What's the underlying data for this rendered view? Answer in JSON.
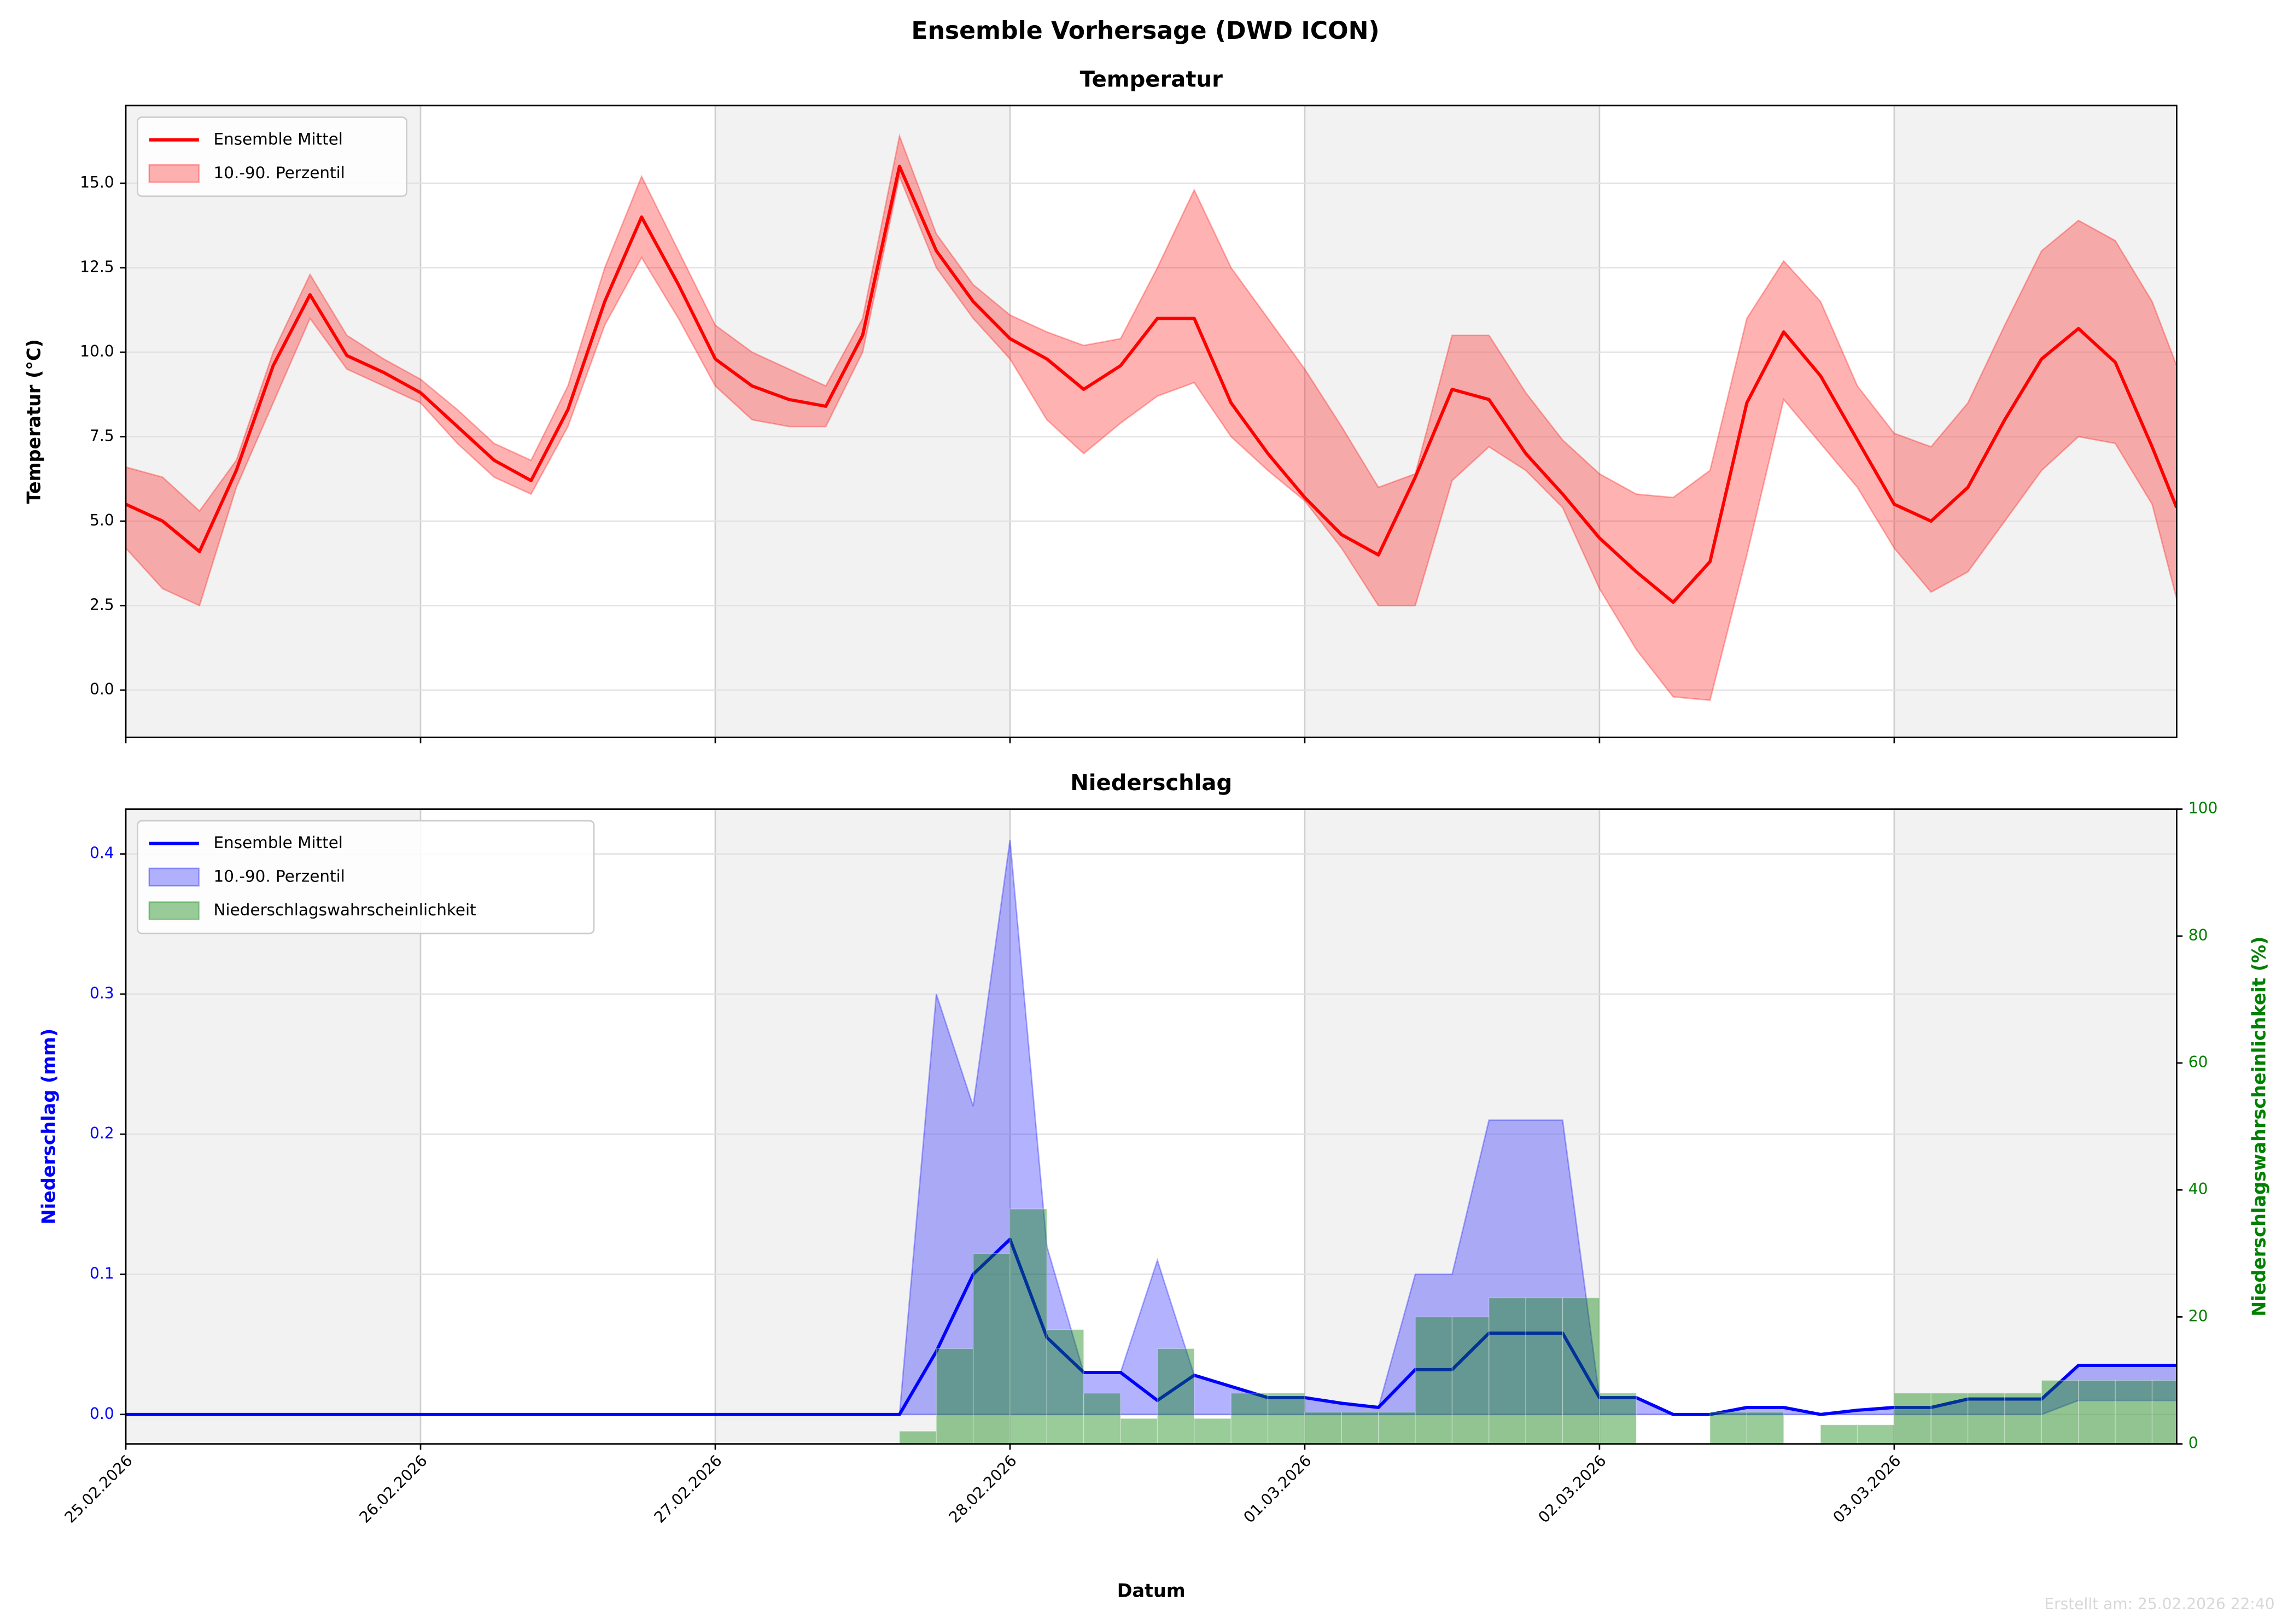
{
  "title": "Ensemble Vorhersage (DWD ICON)",
  "footer": "Erstellt am: 25.02.2026 22:40",
  "chart_data": [
    {
      "type": "line",
      "title": "Temperatur",
      "ylabel": "Temperatur (°C)",
      "x": [
        0,
        3,
        6,
        9,
        12,
        15,
        18,
        21,
        24,
        27,
        30,
        33,
        36,
        39,
        42,
        45,
        48,
        51,
        54,
        57,
        60,
        63,
        66,
        69,
        72,
        75,
        78,
        81,
        84,
        87,
        90,
        93,
        96,
        99,
        102,
        105,
        108,
        111,
        114,
        117,
        120,
        123,
        126,
        129,
        132,
        135,
        138,
        141,
        144,
        147,
        150,
        153,
        156,
        159,
        162,
        165,
        167
      ],
      "xlim": [
        0,
        167
      ],
      "xticks": [
        0,
        24,
        48,
        72,
        96,
        120,
        144
      ],
      "ylim": [
        -1.4,
        17.3
      ],
      "yticks": [
        {
          "value": 0,
          "label": "0.0"
        },
        2.5,
        {
          "value": 5,
          "label": "5.0"
        },
        7.5,
        {
          "value": 10,
          "label": "10.0"
        },
        12.5,
        {
          "value": 15,
          "label": "15.0"
        }
      ],
      "grid": true,
      "legend": "upper left",
      "series": [
        {
          "name": "Ensemble Mittel",
          "type": "line",
          "color": "#ff0000",
          "values": [
            5.5,
            5.0,
            4.1,
            6.5,
            9.6,
            11.7,
            9.9,
            9.4,
            8.8,
            7.8,
            6.8,
            6.2,
            8.3,
            11.5,
            14.0,
            12.0,
            9.8,
            9.0,
            8.6,
            8.4,
            10.5,
            15.5,
            13.0,
            11.5,
            10.4,
            9.8,
            8.9,
            9.6,
            11.0,
            11.0,
            8.5,
            7.0,
            5.7,
            4.6,
            4.0,
            6.3,
            8.9,
            8.6,
            7.0,
            5.8,
            4.5,
            3.5,
            2.6,
            3.8,
            8.5,
            10.6,
            9.3,
            7.4,
            5.5,
            5.0,
            6.0,
            8.0,
            9.8,
            10.7,
            9.7,
            7.2,
            5.4
          ]
        },
        {
          "name": "10.-90. Perzentil",
          "type": "band",
          "color": "#ff0000",
          "low": [
            4.2,
            3.0,
            2.5,
            6.0,
            8.5,
            11.0,
            9.5,
            9.0,
            8.5,
            7.3,
            6.3,
            5.8,
            7.8,
            10.8,
            12.8,
            11.0,
            9.0,
            8.0,
            7.8,
            7.8,
            10.0,
            15.2,
            12.5,
            11.0,
            9.8,
            8.0,
            7.0,
            7.9,
            8.7,
            9.1,
            7.5,
            6.5,
            5.6,
            4.2,
            2.5,
            2.5,
            6.2,
            7.2,
            6.5,
            5.4,
            3.0,
            1.2,
            -0.2,
            -0.3,
            4.0,
            8.6,
            7.3,
            6.0,
            4.2,
            2.9,
            3.5,
            5.0,
            6.5,
            7.5,
            7.3,
            5.5,
            2.7
          ],
          "high": [
            6.6,
            6.3,
            5.3,
            6.8,
            10.0,
            12.3,
            10.5,
            9.8,
            9.2,
            8.3,
            7.3,
            6.8,
            9.0,
            12.5,
            15.2,
            13.0,
            10.8,
            10.0,
            9.5,
            9.0,
            11.0,
            16.4,
            13.5,
            12.0,
            11.1,
            10.6,
            10.2,
            10.4,
            12.5,
            14.8,
            12.5,
            11.0,
            9.5,
            7.8,
            6.0,
            6.4,
            10.5,
            10.5,
            8.8,
            7.4,
            6.4,
            5.8,
            5.7,
            6.5,
            11.0,
            12.7,
            11.5,
            9.0,
            7.6,
            7.2,
            8.5,
            10.8,
            13.0,
            13.9,
            13.3,
            11.5,
            9.6
          ]
        }
      ]
    },
    {
      "type": "line",
      "title": "Niederschlag",
      "xlabel": "Datum",
      "ylabel": "Niederschlag (mm)",
      "ylabel_color": "#0000ff",
      "y2label": "Niederschlagswahrscheinlichkeit (%)",
      "y2label_color": "#008000",
      "x": [
        0,
        3,
        6,
        9,
        12,
        15,
        18,
        21,
        24,
        27,
        30,
        33,
        36,
        39,
        42,
        45,
        48,
        51,
        54,
        57,
        60,
        63,
        66,
        69,
        72,
        75,
        78,
        81,
        84,
        87,
        90,
        93,
        96,
        99,
        102,
        105,
        108,
        111,
        114,
        117,
        120,
        123,
        126,
        129,
        132,
        135,
        138,
        141,
        144,
        147,
        150,
        153,
        156,
        159,
        162,
        165,
        167
      ],
      "xlim": [
        0,
        167
      ],
      "xticks": [
        {
          "value": 0,
          "label": "25.02.2026"
        },
        {
          "value": 24,
          "label": "26.02.2026"
        },
        {
          "value": 48,
          "label": "27.02.2026"
        },
        {
          "value": 72,
          "label": "28.02.2026"
        },
        {
          "value": 96,
          "label": "01.03.2026"
        },
        {
          "value": 120,
          "label": "02.03.2026"
        },
        {
          "value": 144,
          "label": "03.03.2026"
        }
      ],
      "ylim": [
        -0.021,
        0.432
      ],
      "yticks": [
        {
          "value": 0,
          "label": "0.0"
        },
        0.1,
        0.2,
        0.3,
        0.4
      ],
      "y2lim": [
        0,
        100
      ],
      "y2ticks": [
        0,
        20,
        40,
        60,
        80,
        100
      ],
      "grid": true,
      "legend": "upper left",
      "series": [
        {
          "name": "Ensemble Mittel",
          "type": "line",
          "color": "#0000ff",
          "values": [
            0,
            0,
            0,
            0,
            0,
            0,
            0,
            0,
            0,
            0,
            0,
            0,
            0,
            0,
            0,
            0,
            0,
            0,
            0,
            0,
            0,
            0,
            0.045,
            0.1,
            0.125,
            0.055,
            0.03,
            0.03,
            0.01,
            0.028,
            0.02,
            0.012,
            0.012,
            0.008,
            0.005,
            0.032,
            0.032,
            0.058,
            0.058,
            0.058,
            0.012,
            0.012,
            0,
            0,
            0.005,
            0.005,
            0,
            0.003,
            0.005,
            0.005,
            0.011,
            0.011,
            0.011,
            0.035,
            0.035,
            0.035,
            0.035
          ]
        },
        {
          "name": "10.-90. Perzentil",
          "type": "band",
          "color": "#0000ff",
          "low": [
            0,
            0,
            0,
            0,
            0,
            0,
            0,
            0,
            0,
            0,
            0,
            0,
            0,
            0,
            0,
            0,
            0,
            0,
            0,
            0,
            0,
            0,
            0,
            0,
            0,
            0,
            0,
            0,
            0,
            0,
            0,
            0,
            0,
            0,
            0,
            0,
            0,
            0,
            0,
            0,
            0,
            0,
            0,
            0,
            0,
            0,
            0,
            0,
            0,
            0,
            0,
            0,
            0,
            0.01,
            0.01,
            0.01,
            0.01
          ],
          "high": [
            0,
            0,
            0,
            0,
            0,
            0,
            0,
            0,
            0,
            0,
            0,
            0,
            0,
            0,
            0,
            0,
            0,
            0,
            0,
            0,
            0,
            0,
            0.3,
            0.22,
            0.41,
            0.12,
            0.03,
            0.03,
            0.11,
            0.028,
            0.02,
            0.012,
            0.012,
            0.008,
            0.005,
            0.1,
            0.1,
            0.21,
            0.21,
            0.21,
            0.012,
            0.012,
            0,
            0,
            0.005,
            0.005,
            0,
            0.003,
            0.005,
            0.005,
            0.011,
            0.011,
            0.011,
            0.035,
            0.035,
            0.035,
            0.035
          ]
        },
        {
          "name": "Niederschlagswahrscheinlichkeit",
          "type": "bar",
          "axis": "y2",
          "color": "#008000",
          "values": [
            0,
            0,
            0,
            0,
            0,
            0,
            0,
            0,
            0,
            0,
            0,
            0,
            0,
            0,
            0,
            0,
            0,
            0,
            0,
            0,
            0,
            2,
            15,
            30,
            37,
            18,
            8,
            4,
            15,
            4,
            8,
            8,
            5,
            5,
            5,
            20,
            20,
            23,
            23,
            23,
            8,
            0,
            0,
            5,
            5,
            0,
            3,
            3,
            8,
            8,
            8,
            8,
            10,
            10,
            10,
            10,
            10
          ]
        }
      ]
    }
  ]
}
